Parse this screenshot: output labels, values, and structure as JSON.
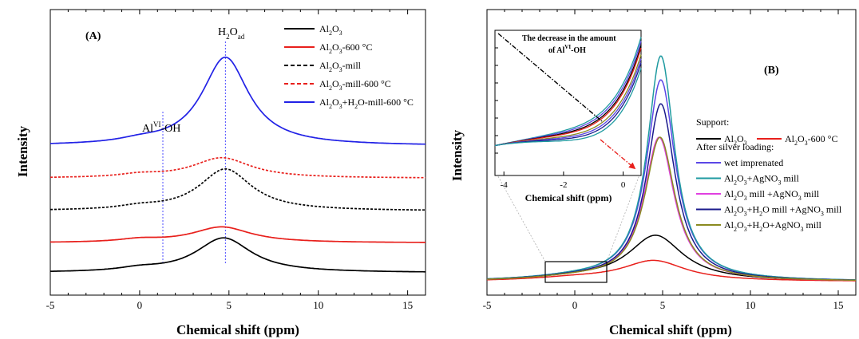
{
  "chart_data": [
    {
      "panel": "(A)",
      "type": "line",
      "xlabel": "Chemical shift (ppm)",
      "ylabel": "Intensity",
      "xlim": [
        -5,
        16
      ],
      "xticks": [
        -5,
        0,
        5,
        10,
        15
      ],
      "legend_placement": "top-right",
      "annotations": [
        {
          "text": "Al",
          "sup": "VI",
          "after": "-OH",
          "x": 1.3
        },
        {
          "text": "H",
          "sub": "2",
          "mid": "O",
          "sub2": "ad",
          "x": 4.8
        }
      ],
      "series": [
        {
          "name": "Al2O3",
          "legend_label": [
            [
              "Al",
              ""
            ],
            [
              "2",
              "sub"
            ],
            [
              "O",
              ""
            ],
            [
              "3",
              "sub"
            ]
          ],
          "color": "#000000",
          "dash": "solid",
          "offset": 0.0,
          "peak": 0.145,
          "center": 4.7,
          "width": 1.9
        },
        {
          "name": "Al2O3-600 °C",
          "legend_label": [
            [
              "Al",
              ""
            ],
            [
              "2",
              "sub"
            ],
            [
              "O",
              ""
            ],
            [
              "3",
              "sub"
            ],
            [
              "-600 °C",
              ""
            ]
          ],
          "color": "#e8201c",
          "dash": "solid",
          "offset": 0.125,
          "peak": 0.066,
          "center": 4.6,
          "width": 2.0
        },
        {
          "name": "Al2O3-mill",
          "legend_label": [
            [
              "Al",
              ""
            ],
            [
              "2",
              "sub"
            ],
            [
              "O",
              ""
            ],
            [
              "3",
              "sub"
            ],
            [
              "-mill",
              ""
            ]
          ],
          "color": "#000000",
          "dash": "dashed",
          "offset": 0.258,
          "peak": 0.175,
          "center": 4.8,
          "width": 1.8
        },
        {
          "name": "Al2O3-mill-600 °C",
          "legend_label": [
            [
              "Al",
              ""
            ],
            [
              "2",
              "sub"
            ],
            [
              "O",
              ""
            ],
            [
              "3",
              "sub"
            ],
            [
              "-mill-600 °C",
              ""
            ]
          ],
          "color": "#e8201c",
          "dash": "dashed",
          "offset": 0.395,
          "peak": 0.085,
          "center": 4.6,
          "width": 2.0
        },
        {
          "name": "Al2O3+H2O-mill-600 °C",
          "legend_label": [
            [
              "Al",
              ""
            ],
            [
              "2",
              "sub"
            ],
            [
              "O",
              ""
            ],
            [
              "3",
              "sub"
            ],
            [
              "+H",
              ""
            ],
            [
              "2",
              "sub"
            ],
            [
              "O-mill-600 °C",
              ""
            ]
          ],
          "color": "#2222e6",
          "dash": "solid",
          "offset": 0.53,
          "peak": 0.37,
          "center": 4.8,
          "width": 1.6
        }
      ]
    },
    {
      "panel": "(B)",
      "type": "line",
      "xlabel": "Chemical shift (ppm)",
      "ylabel": "Intensity",
      "xlim": [
        -5,
        16
      ],
      "xticks": [
        -5,
        0,
        5,
        10,
        15
      ],
      "legend_placement": "right",
      "legend_groups": [
        "Support:",
        "After silver loading:"
      ],
      "series": [
        {
          "name": "Al2O3",
          "group": "Support:",
          "legend_label": [
            [
              "Al",
              ""
            ],
            [
              "2",
              "sub"
            ],
            [
              "O",
              ""
            ],
            [
              "3",
              "sub"
            ]
          ],
          "color": "#000000",
          "peak": 0.19,
          "center": 4.6,
          "width": 1.9
        },
        {
          "name": "Al2O3-600 °C",
          "group": "Support:",
          "legend_label": [
            [
              "Al",
              ""
            ],
            [
              "2",
              "sub"
            ],
            [
              "O",
              ""
            ],
            [
              "3",
              "sub"
            ],
            [
              "-600 °C",
              ""
            ]
          ],
          "color": "#e8201c",
          "peak": 0.085,
          "center": 4.5,
          "width": 2.2
        },
        {
          "name": "wet imprenated",
          "group": "After silver loading:",
          "legend_label": [
            [
              "wet imprenated",
              ""
            ]
          ],
          "color": "#5b47e6",
          "peak": 0.84,
          "center": 4.9,
          "width": 1.0
        },
        {
          "name": "Al2O3+AgNO3 mill",
          "group": "After silver loading:",
          "legend_label": [
            [
              "Al",
              ""
            ],
            [
              "2",
              "sub"
            ],
            [
              "O",
              ""
            ],
            [
              "3",
              "sub"
            ],
            [
              "+AgNO",
              ""
            ],
            [
              "3",
              "sub"
            ],
            [
              " mill",
              ""
            ]
          ],
          "color": "#1e9aa0",
          "peak": 0.94,
          "center": 4.9,
          "width": 0.95
        },
        {
          "name": "Al2O3 mill +AgNO3 mill",
          "group": "After silver loading:",
          "legend_label": [
            [
              "Al",
              ""
            ],
            [
              "2",
              "sub"
            ],
            [
              "O",
              ""
            ],
            [
              "3",
              "sub"
            ],
            [
              " mill +AgNO",
              ""
            ],
            [
              "3",
              "sub"
            ],
            [
              " mill",
              ""
            ]
          ],
          "color": "#e040e0",
          "peak": 0.6,
          "center": 4.8,
          "width": 1.05
        },
        {
          "name": "Al2O3+H2O mill +AgNO3 mill",
          "group": "After silver loading:",
          "legend_label": [
            [
              "Al",
              ""
            ],
            [
              "2",
              "sub"
            ],
            [
              "O",
              ""
            ],
            [
              "3",
              "sub"
            ],
            [
              "+H",
              ""
            ],
            [
              "2",
              "sub"
            ],
            [
              "O mill +AgNO",
              ""
            ],
            [
              "3",
              "sub"
            ],
            [
              " mill",
              ""
            ]
          ],
          "color": "#1a1a8c",
          "peak": 0.74,
          "center": 4.9,
          "width": 1.0
        },
        {
          "name": "Al2O3+H2O+AgNO3 mill",
          "group": "After silver loading:",
          "legend_label": [
            [
              "Al",
              ""
            ],
            [
              "2",
              "sub"
            ],
            [
              "O",
              ""
            ],
            [
              "3",
              "sub"
            ],
            [
              "+H",
              ""
            ],
            [
              "2",
              "sub"
            ],
            [
              "O+AgNO",
              ""
            ],
            [
              "3",
              "sub"
            ],
            [
              " mill",
              ""
            ]
          ],
          "color": "#8a8a20",
          "peak": 0.6,
          "center": 4.85,
          "width": 1.05
        }
      ],
      "inset": {
        "xlabel": "Chemical shift (ppm)",
        "xlim": [
          -4.3,
          0.6
        ],
        "xticks": [
          -4,
          -2,
          0
        ],
        "note": [
          "The decrease in the amount",
          "of Al",
          "VI",
          "-OH"
        ]
      }
    }
  ]
}
